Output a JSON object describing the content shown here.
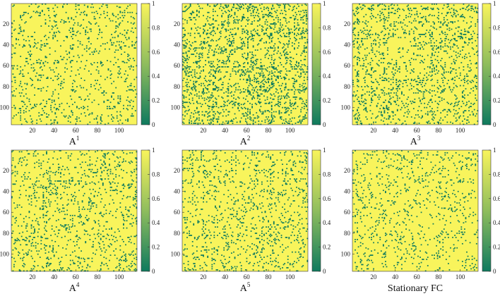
{
  "chart_data": [
    {
      "type": "heatmap",
      "title_base": "A",
      "title_sup": "1",
      "matrix_size": 116,
      "density": 0.06,
      "seed": 11,
      "xticks": [
        "20",
        "40",
        "60",
        "80",
        "100"
      ],
      "yticks": [
        "20",
        "40",
        "60",
        "80",
        "100"
      ],
      "colorbar": {
        "min": 0,
        "max": 1,
        "ticks": [
          "0",
          "0.2",
          "0.4",
          "0.6",
          "0.8",
          "1"
        ]
      }
    },
    {
      "type": "heatmap",
      "title_base": "A",
      "title_sup": "2",
      "matrix_size": 116,
      "density": 0.12,
      "seed": 23,
      "xticks": [
        "20",
        "40",
        "60",
        "80",
        "100"
      ],
      "yticks": [
        "20",
        "40",
        "60",
        "80",
        "100"
      ],
      "colorbar": {
        "min": 0,
        "max": 1,
        "ticks": [
          "0",
          "0.2",
          "0.4",
          "0.6",
          "0.8",
          "1"
        ]
      }
    },
    {
      "type": "heatmap",
      "title_base": "A",
      "title_sup": "3",
      "matrix_size": 116,
      "density": 0.09,
      "seed": 37,
      "xticks": [
        "20",
        "40",
        "60",
        "80",
        "100"
      ],
      "yticks": [
        "20",
        "40",
        "60",
        "80",
        "100"
      ],
      "colorbar": {
        "min": 0,
        "max": 1,
        "ticks": [
          "0",
          "0.2",
          "0.4",
          "0.6",
          "0.8",
          "1"
        ]
      }
    },
    {
      "type": "heatmap",
      "title_base": "A",
      "title_sup": "4",
      "matrix_size": 116,
      "density": 0.07,
      "seed": 41,
      "xticks": [
        "20",
        "40",
        "60",
        "80",
        "100"
      ],
      "yticks": [
        "20",
        "40",
        "60",
        "80",
        "100"
      ],
      "colorbar": {
        "min": 0,
        "max": 1,
        "ticks": [
          "0",
          "0.2",
          "0.4",
          "0.6",
          "0.8",
          "1"
        ]
      }
    },
    {
      "type": "heatmap",
      "title_base": "A",
      "title_sup": "5",
      "matrix_size": 116,
      "density": 0.07,
      "seed": 53,
      "xticks": [
        "20",
        "40",
        "60",
        "80",
        "100"
      ],
      "yticks": [
        "20",
        "40",
        "60",
        "80",
        "100"
      ],
      "colorbar": {
        "min": 0,
        "max": 1,
        "ticks": [
          "0",
          "0.2",
          "0.4",
          "0.6",
          "0.8",
          "1"
        ]
      }
    },
    {
      "type": "heatmap",
      "title_base": "Stationary FC",
      "title_sup": "",
      "matrix_size": 116,
      "density": 0.05,
      "seed": 67,
      "xticks": [
        "20",
        "40",
        "60",
        "80",
        "100"
      ],
      "yticks": [
        "20",
        "40",
        "60",
        "80",
        "100"
      ],
      "colorbar": {
        "min": 0,
        "max": 1,
        "ticks": [
          "0",
          "0.2",
          "0.4",
          "0.6",
          "0.8",
          "1"
        ]
      }
    }
  ],
  "colors": {
    "high": "#f8f45c",
    "low": "#0f7a5e",
    "colormap": "summer-like yellow-to-green"
  }
}
